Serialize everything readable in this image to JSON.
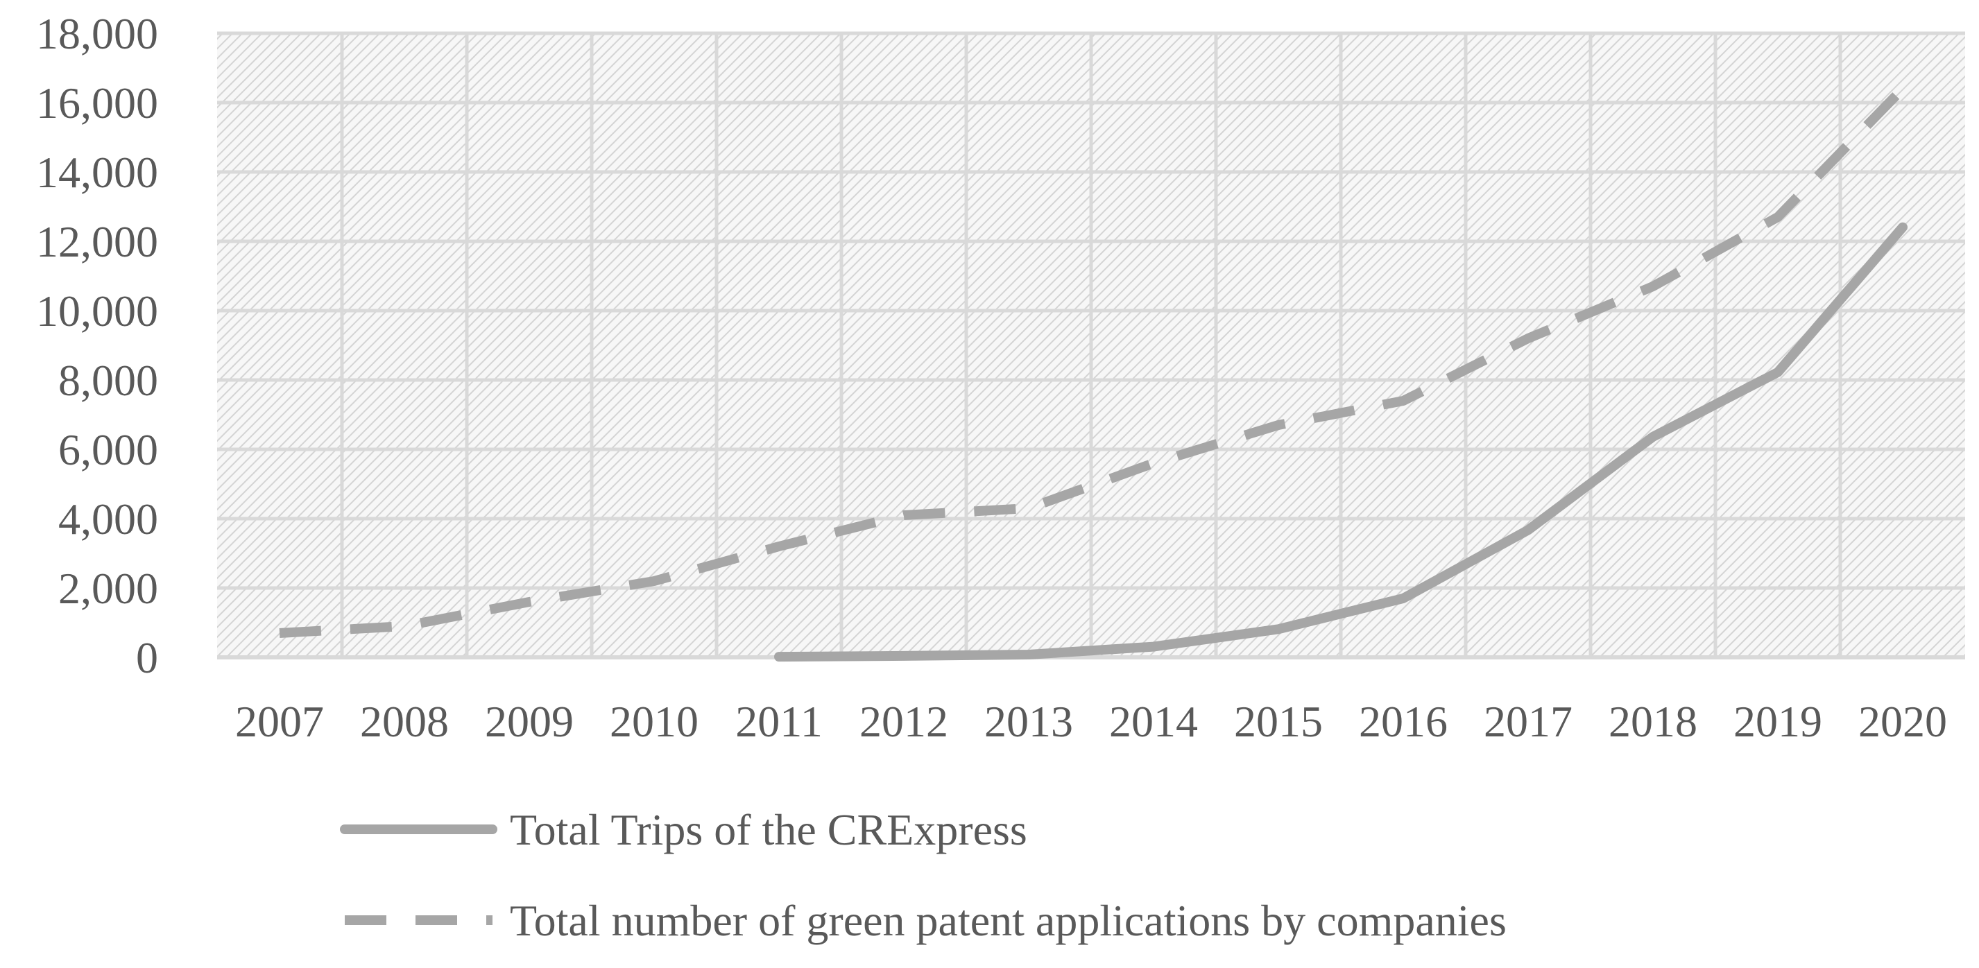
{
  "colors": {
    "line": "#a6a6a6",
    "grid": "#d9d9d9",
    "hatch": "#d4d4d4",
    "plot_bg": "#f7f7f7",
    "text": "#595959"
  },
  "chart_data": {
    "type": "line",
    "title": "",
    "xlabel": "",
    "ylabel": "",
    "categories": [
      "2007",
      "2008",
      "2009",
      "2010",
      "2011",
      "2012",
      "2013",
      "2014",
      "2015",
      "2016",
      "2017",
      "2018",
      "2019",
      "2020"
    ],
    "ylim": [
      0,
      18000
    ],
    "y_ticks": [
      0,
      2000,
      4000,
      6000,
      8000,
      10000,
      12000,
      14000,
      16000,
      18000
    ],
    "y_tick_labels": [
      "0",
      "2,000",
      "4,000",
      "6,000",
      "8,000",
      "10,000",
      "12,000",
      "14,000",
      "16,000",
      "18,000"
    ],
    "grid": true,
    "legend_position": "bottom",
    "series": [
      {
        "name": "Total Trips of the CRExpress",
        "style": "solid",
        "values": [
          null,
          null,
          null,
          null,
          17,
          42,
          80,
          308,
          815,
          1702,
          3673,
          6363,
          8225,
          12406
        ]
      },
      {
        "name": "Total number of green patent applications by companies",
        "style": "dashed",
        "values": [
          700,
          900,
          1600,
          2200,
          3200,
          4100,
          4300,
          5600,
          6700,
          7400,
          9200,
          10700,
          12700,
          16400
        ]
      }
    ]
  }
}
